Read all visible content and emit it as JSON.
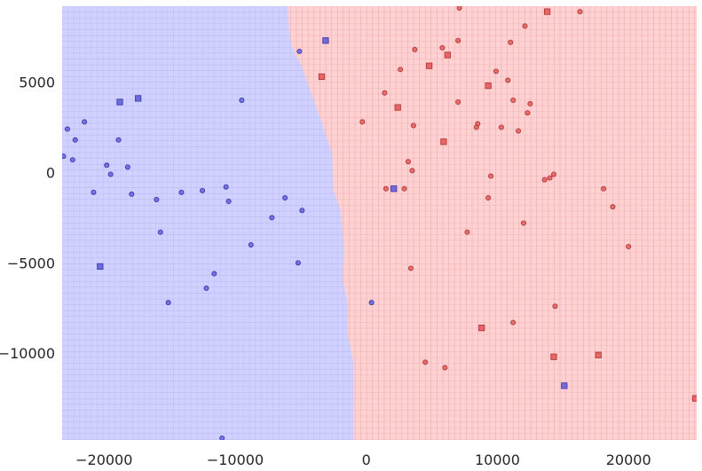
{
  "chart_data": {
    "type": "scatter",
    "title": "",
    "xlabel": "",
    "ylabel": "",
    "xlim": [
      -23200,
      25200
    ],
    "ylim": [
      -14800,
      9200
    ],
    "x_ticks": [
      {
        "value": -20000,
        "label": "−20000"
      },
      {
        "value": -10000,
        "label": "−10000"
      },
      {
        "value": 0,
        "label": "0"
      },
      {
        "value": 10000,
        "label": "10000"
      },
      {
        "value": 20000,
        "label": "20000"
      }
    ],
    "y_ticks": [
      {
        "value": 5000,
        "label": "5000"
      },
      {
        "value": 0,
        "label": "0"
      },
      {
        "value": -5000,
        "label": "−5000"
      },
      {
        "value": -10000,
        "label": "−10000"
      }
    ],
    "grid": false,
    "colors": {
      "blue_region": "#d1d1ff",
      "red_region": "#ffd1d1",
      "blue_grid": "#a9a9f0",
      "red_grid": "#f0a9a9",
      "blue_point": "#5b5bd9",
      "red_point": "#e05555",
      "blue_edge": "#3333aa",
      "red_edge": "#b03030"
    },
    "decision_boundary": [
      [
        -6000,
        9200
      ],
      [
        -5900,
        8000
      ],
      [
        -5700,
        7000
      ],
      [
        -5000,
        6000
      ],
      [
        -4500,
        5000
      ],
      [
        -4000,
        4000
      ],
      [
        -3500,
        3000
      ],
      [
        -2600,
        1000
      ],
      [
        -2500,
        -1000
      ],
      [
        -2000,
        -2000
      ],
      [
        -1700,
        -4000
      ],
      [
        -1800,
        -6000
      ],
      [
        -1400,
        -7200
      ],
      [
        -1400,
        -9000
      ],
      [
        -1000,
        -10500
      ],
      [
        -1000,
        -14800
      ]
    ],
    "series": [
      {
        "class": "blue",
        "marker": "circle",
        "points": [
          [
            -23100,
            900
          ],
          [
            -22800,
            2400
          ],
          [
            -22200,
            1800
          ],
          [
            -22400,
            700
          ],
          [
            -21500,
            2800
          ],
          [
            -20800,
            -1100
          ],
          [
            -19800,
            400
          ],
          [
            -19500,
            -100
          ],
          [
            -18900,
            1800
          ],
          [
            -18200,
            300
          ],
          [
            -17900,
            -1200
          ],
          [
            -16000,
            -1500
          ],
          [
            -15700,
            -3300
          ],
          [
            -15100,
            -7200
          ],
          [
            -14100,
            -1100
          ],
          [
            -12500,
            -1000
          ],
          [
            -12200,
            -6400
          ],
          [
            -11600,
            -5600
          ],
          [
            -10700,
            -800
          ],
          [
            -10500,
            -1600
          ],
          [
            -9500,
            4000
          ],
          [
            -8800,
            -4000
          ],
          [
            -7200,
            -2500
          ],
          [
            -6200,
            -1400
          ],
          [
            -5200,
            -5000
          ],
          [
            -4900,
            -2100
          ],
          [
            -5100,
            6700
          ],
          [
            400,
            -7200
          ],
          [
            -11000,
            -14700
          ]
        ]
      },
      {
        "class": "blue",
        "marker": "square",
        "points": [
          [
            -18800,
            3900
          ],
          [
            -17400,
            4100
          ],
          [
            -20300,
            -5200
          ],
          [
            -3100,
            7300
          ],
          [
            2100,
            -900
          ],
          [
            15100,
            -11800
          ]
        ]
      },
      {
        "class": "red",
        "marker": "circle",
        "points": [
          [
            7100,
            9100
          ],
          [
            16300,
            8900
          ],
          [
            12100,
            8100
          ],
          [
            11000,
            7200
          ],
          [
            7000,
            7300
          ],
          [
            5800,
            6900
          ],
          [
            3700,
            6800
          ],
          [
            2600,
            5700
          ],
          [
            9900,
            5600
          ],
          [
            10800,
            5100
          ],
          [
            1400,
            4400
          ],
          [
            7000,
            3900
          ],
          [
            11200,
            4000
          ],
          [
            12500,
            3800
          ],
          [
            12300,
            3300
          ],
          [
            -300,
            2800
          ],
          [
            3600,
            2600
          ],
          [
            8500,
            2700
          ],
          [
            8400,
            2500
          ],
          [
            10300,
            2500
          ],
          [
            11600,
            2300
          ],
          [
            3200,
            600
          ],
          [
            3500,
            100
          ],
          [
            9500,
            -200
          ],
          [
            14300,
            -100
          ],
          [
            14000,
            -300
          ],
          [
            13600,
            -400
          ],
          [
            1500,
            -900
          ],
          [
            2900,
            -900
          ],
          [
            9300,
            -1400
          ],
          [
            18100,
            -900
          ],
          [
            18800,
            -1900
          ],
          [
            12000,
            -2800
          ],
          [
            7700,
            -3300
          ],
          [
            20000,
            -4100
          ],
          [
            3400,
            -5300
          ],
          [
            14400,
            -7400
          ],
          [
            11200,
            -8300
          ],
          [
            4500,
            -10500
          ],
          [
            6000,
            -10800
          ]
        ]
      },
      {
        "class": "red",
        "marker": "square",
        "points": [
          [
            13800,
            8900
          ],
          [
            6200,
            6500
          ],
          [
            4800,
            5900
          ],
          [
            -3400,
            5300
          ],
          [
            9300,
            4800
          ],
          [
            2400,
            3600
          ],
          [
            5900,
            1700
          ],
          [
            8800,
            -8600
          ],
          [
            14300,
            -10200
          ],
          [
            17700,
            -10100
          ],
          [
            25100,
            -12500
          ]
        ]
      }
    ]
  }
}
